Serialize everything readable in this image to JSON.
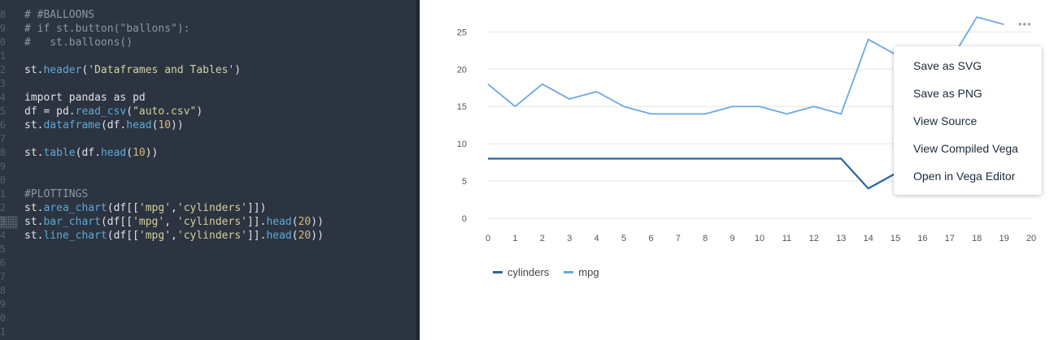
{
  "editor": {
    "line_numbers": [
      "8",
      "9",
      "0",
      "1",
      "2",
      "3",
      "4",
      "5",
      "6",
      "7",
      "8",
      "9",
      "0",
      "1",
      "2",
      "3",
      "4",
      "5",
      "6",
      "7",
      "8",
      "9",
      "0",
      "1",
      "2"
    ],
    "lines": [
      [
        {
          "t": "comment",
          "v": "# #BALLOONS"
        }
      ],
      [
        {
          "t": "comment",
          "v": "# if st.button(\"ballons\"):"
        }
      ],
      [
        {
          "t": "comment",
          "v": "#   st.balloons()"
        }
      ],
      [],
      [
        {
          "t": "plain",
          "v": "st."
        },
        {
          "t": "fn",
          "v": "header"
        },
        {
          "t": "plain",
          "v": "("
        },
        {
          "t": "str",
          "v": "'Dataframes and Tables'"
        },
        {
          "t": "plain",
          "v": ")"
        }
      ],
      [],
      [
        {
          "t": "kw",
          "v": "import"
        },
        {
          "t": "plain",
          "v": " pandas "
        },
        {
          "t": "kw",
          "v": "as"
        },
        {
          "t": "plain",
          "v": " pd"
        }
      ],
      [
        {
          "t": "plain",
          "v": "df = pd."
        },
        {
          "t": "fn",
          "v": "read_csv"
        },
        {
          "t": "plain",
          "v": "("
        },
        {
          "t": "str",
          "v": "\"auto.csv\""
        },
        {
          "t": "plain",
          "v": ")"
        }
      ],
      [
        {
          "t": "plain",
          "v": "st."
        },
        {
          "t": "fn",
          "v": "dataframe"
        },
        {
          "t": "plain",
          "v": "(df."
        },
        {
          "t": "fn",
          "v": "head"
        },
        {
          "t": "plain",
          "v": "("
        },
        {
          "t": "num",
          "v": "10"
        },
        {
          "t": "plain",
          "v": "))"
        }
      ],
      [],
      [
        {
          "t": "plain",
          "v": "st."
        },
        {
          "t": "fn",
          "v": "table"
        },
        {
          "t": "plain",
          "v": "(df."
        },
        {
          "t": "fn",
          "v": "head"
        },
        {
          "t": "plain",
          "v": "("
        },
        {
          "t": "num",
          "v": "10"
        },
        {
          "t": "plain",
          "v": "))"
        }
      ],
      [],
      [],
      [
        {
          "t": "comment",
          "v": "#PLOTTINGS"
        }
      ],
      [
        {
          "t": "plain",
          "v": "st."
        },
        {
          "t": "fn",
          "v": "area_chart"
        },
        {
          "t": "plain",
          "v": "(df[["
        },
        {
          "t": "str",
          "v": "'mpg'"
        },
        {
          "t": "plain",
          "v": ","
        },
        {
          "t": "str",
          "v": "'cylinders'"
        },
        {
          "t": "plain",
          "v": "]])"
        }
      ],
      [
        {
          "t": "plain",
          "v": "st."
        },
        {
          "t": "fn",
          "v": "bar_chart"
        },
        {
          "t": "plain",
          "v": "(df[["
        },
        {
          "t": "str",
          "v": "'mpg'"
        },
        {
          "t": "plain",
          "v": ", "
        },
        {
          "t": "str",
          "v": "'cylinders'"
        },
        {
          "t": "plain",
          "v": "]]."
        },
        {
          "t": "fn",
          "v": "head"
        },
        {
          "t": "plain",
          "v": "("
        },
        {
          "t": "num",
          "v": "20"
        },
        {
          "t": "plain",
          "v": "))"
        }
      ],
      [
        {
          "t": "plain",
          "v": "st."
        },
        {
          "t": "fn",
          "v": "line_chart"
        },
        {
          "t": "plain",
          "v": "(df[["
        },
        {
          "t": "str",
          "v": "'mpg'"
        },
        {
          "t": "plain",
          "v": ","
        },
        {
          "t": "str",
          "v": "'cylinders'"
        },
        {
          "t": "plain",
          "v": "]]."
        },
        {
          "t": "fn",
          "v": "head"
        },
        {
          "t": "plain",
          "v": "("
        },
        {
          "t": "num",
          "v": "20"
        },
        {
          "t": "plain",
          "v": "))"
        }
      ],
      [],
      [],
      [],
      [],
      [],
      [],
      [],
      []
    ]
  },
  "chart": {
    "more_label": "•••",
    "legend": [
      {
        "label": "cylinders",
        "color": "#2b65a8"
      },
      {
        "label": "mpg",
        "color": "#6ba8e5"
      }
    ]
  },
  "menu": {
    "items": [
      "Save as SVG",
      "Save as PNG",
      "View Source",
      "View Compiled Vega",
      "Open in Vega Editor"
    ]
  },
  "chart_data": {
    "type": "line",
    "title": "",
    "xlabel": "",
    "ylabel": "",
    "x": [
      0,
      1,
      2,
      3,
      4,
      5,
      6,
      7,
      8,
      9,
      10,
      11,
      12,
      13,
      14,
      15,
      16,
      17,
      18,
      19
    ],
    "x_ticks": [
      "0",
      "1",
      "2",
      "3",
      "4",
      "5",
      "6",
      "7",
      "8",
      "9",
      "10",
      "11",
      "12",
      "13",
      "14",
      "15",
      "16",
      "17",
      "18",
      "19",
      "20"
    ],
    "y_ticks": [
      "0",
      "5",
      "10",
      "15",
      "20",
      "25"
    ],
    "xlim": [
      0,
      20
    ],
    "ylim": [
      0,
      27
    ],
    "series": [
      {
        "name": "cylinders",
        "color": "#2b65a8",
        "values": [
          8,
          8,
          8,
          8,
          8,
          8,
          8,
          8,
          8,
          8,
          8,
          8,
          8,
          8,
          4,
          6,
          6,
          6,
          4,
          4
        ]
      },
      {
        "name": "mpg",
        "color": "#6ba8e5",
        "values": [
          18,
          15,
          18,
          16,
          17,
          15,
          14,
          14,
          14,
          15,
          15,
          14,
          15,
          14,
          24,
          22,
          18,
          21,
          27,
          26
        ]
      }
    ]
  }
}
